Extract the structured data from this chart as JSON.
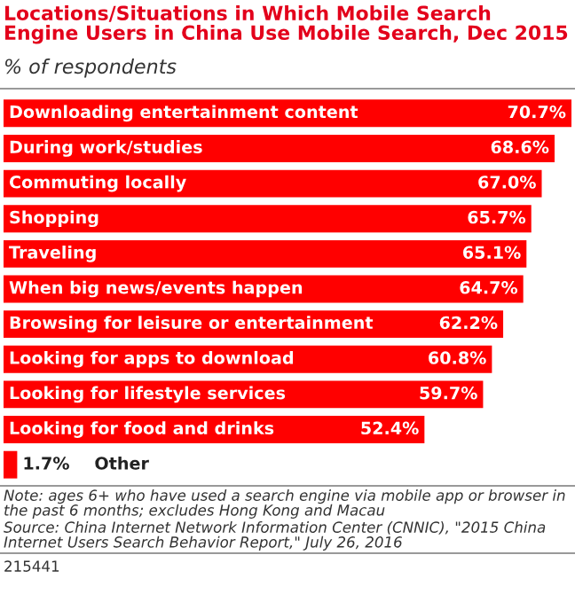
{
  "chart_data": {
    "type": "bar",
    "orientation": "horizontal",
    "title": "Locations/Situations in Which Mobile Search Engine Users in China Use Mobile Search, Dec 2015",
    "subtitle": "% of respondents",
    "categories": [
      "Downloading entertainment content",
      "During work/studies",
      "Commuting locally",
      "Shopping",
      "Traveling",
      "When big news/events happen",
      "Browsing for leisure or entertainment",
      "Looking for apps to download",
      "Looking for lifestyle services",
      "Looking for food and drinks",
      "Other"
    ],
    "values": [
      70.7,
      68.6,
      67.0,
      65.7,
      65.1,
      64.7,
      62.2,
      60.8,
      59.7,
      52.4,
      1.7
    ],
    "value_labels": [
      "70.7%",
      "68.6%",
      "67.0%",
      "65.7%",
      "65.1%",
      "64.7%",
      "62.2%",
      "60.8%",
      "59.7%",
      "52.4%",
      "1.7%"
    ],
    "color": "#ff0000",
    "legend": false,
    "annotations": [
      "Note: ages 6+ who have used a search engine via mobile app or browser in the past 6 months; excludes Hong Kong and Macau",
      "Source: China Internet Network Information Center (CNNIC), \"2015 China Internet Users Search Behavior Report,\" July 26, 2016",
      "215441"
    ]
  }
}
